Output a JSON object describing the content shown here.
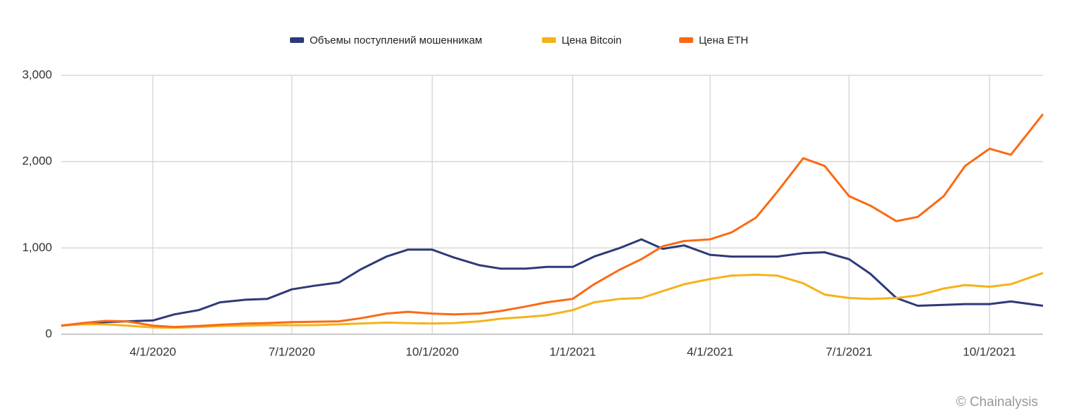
{
  "chart_data": {
    "type": "line",
    "x": [
      "2020-02-01",
      "2020-02-15",
      "2020-03-01",
      "2020-03-15",
      "2020-04-01",
      "2020-04-15",
      "2020-05-01",
      "2020-05-15",
      "2020-06-01",
      "2020-06-15",
      "2020-07-01",
      "2020-07-15",
      "2020-08-01",
      "2020-08-15",
      "2020-09-01",
      "2020-09-15",
      "2020-10-01",
      "2020-10-15",
      "2020-11-01",
      "2020-11-15",
      "2020-12-01",
      "2020-12-15",
      "2021-01-01",
      "2021-01-15",
      "2021-02-01",
      "2021-02-15",
      "2021-03-01",
      "2021-03-15",
      "2021-04-01",
      "2021-04-15",
      "2021-05-01",
      "2021-05-15",
      "2021-06-01",
      "2021-06-15",
      "2021-07-01",
      "2021-07-15",
      "2021-08-01",
      "2021-08-15",
      "2021-09-01",
      "2021-09-15",
      "2021-10-01",
      "2021-10-15",
      "2021-11-05"
    ],
    "series": [
      {
        "name": "Объемы поступлений мошенникам",
        "color": "#2e3a78",
        "values": [
          100,
          120,
          140,
          150,
          160,
          230,
          280,
          370,
          400,
          410,
          520,
          560,
          600,
          750,
          900,
          980,
          980,
          890,
          800,
          760,
          760,
          780,
          780,
          900,
          1000,
          1100,
          990,
          1030,
          920,
          900,
          900,
          900,
          940,
          950,
          870,
          700,
          420,
          330,
          340,
          350,
          350,
          380,
          330
        ]
      },
      {
        "name": "Цена Bitcoin",
        "color": "#f5b21b",
        "values": [
          100,
          115,
          115,
          100,
          80,
          75,
          85,
          95,
          100,
          105,
          105,
          105,
          115,
          125,
          135,
          130,
          125,
          130,
          150,
          180,
          200,
          220,
          280,
          370,
          410,
          420,
          500,
          580,
          640,
          680,
          690,
          680,
          590,
          460,
          420,
          410,
          420,
          450,
          530,
          570,
          550,
          580,
          710
        ]
      },
      {
        "name": "Цена ETH",
        "color": "#fb6a13",
        "values": [
          100,
          130,
          155,
          150,
          100,
          85,
          95,
          110,
          125,
          130,
          140,
          145,
          150,
          185,
          240,
          260,
          240,
          230,
          240,
          270,
          320,
          370,
          410,
          580,
          750,
          870,
          1020,
          1080,
          1100,
          1180,
          1350,
          1650,
          2040,
          1950,
          1600,
          1490,
          1310,
          1360,
          1600,
          1950,
          2150,
          2080,
          2550
        ]
      }
    ],
    "xlim": [
      "2020-02-01",
      "2021-11-05"
    ],
    "xticks": [
      {
        "value": "2020-04-01",
        "label": "4/1/2020"
      },
      {
        "value": "2020-07-01",
        "label": "7/1/2020"
      },
      {
        "value": "2020-10-01",
        "label": "10/1/2020"
      },
      {
        "value": "2021-01-01",
        "label": "1/1/2021"
      },
      {
        "value": "2021-04-01",
        "label": "4/1/2021"
      },
      {
        "value": "2021-07-01",
        "label": "7/1/2021"
      },
      {
        "value": "2021-10-01",
        "label": "10/1/2021"
      }
    ],
    "ylim": [
      0,
      3000
    ],
    "yticks": [
      0,
      {
        "value": 1000,
        "label": "1,000"
      },
      {
        "value": 2000,
        "label": "2,000"
      },
      {
        "value": 3000,
        "label": "3,000"
      }
    ],
    "grid": true,
    "legend": "top",
    "annotation": "© Chainalysis"
  }
}
